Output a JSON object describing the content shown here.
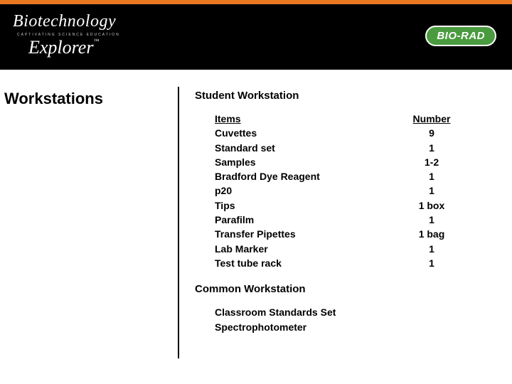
{
  "header": {
    "logo_line1": "Biotechnology",
    "logo_sub": "CAPTIVATING   SCIENCE EDUCATION",
    "logo_line2": "Explorer",
    "logo_tm": "™",
    "brand_right": "BIO-RAD",
    "accent_color": "#e87722",
    "brand_badge_color": "#4a9b3f"
  },
  "page_title": "Workstations",
  "student": {
    "heading": "Student Workstation",
    "columns": {
      "item": "Items",
      "number": "Number"
    },
    "rows": [
      {
        "item": "Cuvettes",
        "number": "9"
      },
      {
        "item": "Standard set",
        "number": "1"
      },
      {
        "item": "Samples",
        "number": "1-2"
      },
      {
        "item": "Bradford Dye Reagent",
        "number": "1"
      },
      {
        "item": "p20",
        "number": "1"
      },
      {
        "item": "Tips",
        "number": "1 box"
      },
      {
        "item": "Parafilm",
        "number": "1"
      },
      {
        "item": "Transfer Pipettes",
        "number": "1 bag"
      },
      {
        "item": "Lab Marker",
        "number": "1"
      },
      {
        "item": "Test tube rack",
        "number": "1"
      }
    ]
  },
  "common": {
    "heading": "Common Workstation",
    "items": [
      "Classroom Standards Set",
      "Spectrophotometer"
    ]
  }
}
